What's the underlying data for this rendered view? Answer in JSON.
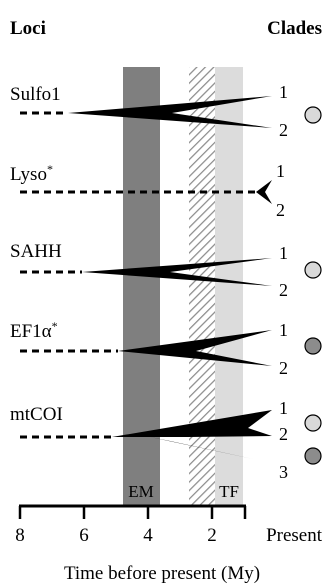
{
  "header": {
    "left": "Loci",
    "right": "Clades"
  },
  "bands": [
    {
      "label": "EM",
      "color": "#7f7f7f"
    },
    {
      "label": "",
      "color": "#bdbdbd"
    },
    {
      "label": "TF",
      "color": "#dcdcdc"
    }
  ],
  "loci": [
    {
      "name": "Sulfo1",
      "star": "",
      "clades": [
        "1",
        "2"
      ],
      "markers": [
        "light"
      ]
    },
    {
      "name": "Lyso",
      "star": "*",
      "clades": [
        "1",
        "2"
      ],
      "markers": []
    },
    {
      "name": "SAHH",
      "star": "",
      "clades": [
        "1",
        "2"
      ],
      "markers": [
        "light"
      ]
    },
    {
      "name": "EF1α",
      "star": "*",
      "clades": [
        "1",
        "2"
      ],
      "markers": [
        "dark"
      ]
    },
    {
      "name": "mtCOI",
      "star": "",
      "clades": [
        "1",
        "2",
        "3"
      ],
      "markers": [
        "light",
        "dark"
      ]
    }
  ],
  "axis": {
    "ticks": [
      "8",
      "6",
      "4",
      "2",
      "Present"
    ],
    "title": "Time before present (My)"
  },
  "colors": {
    "light_marker": "#d9d9d9",
    "dark_marker": "#8c8c8c",
    "wedge": "#000000"
  }
}
